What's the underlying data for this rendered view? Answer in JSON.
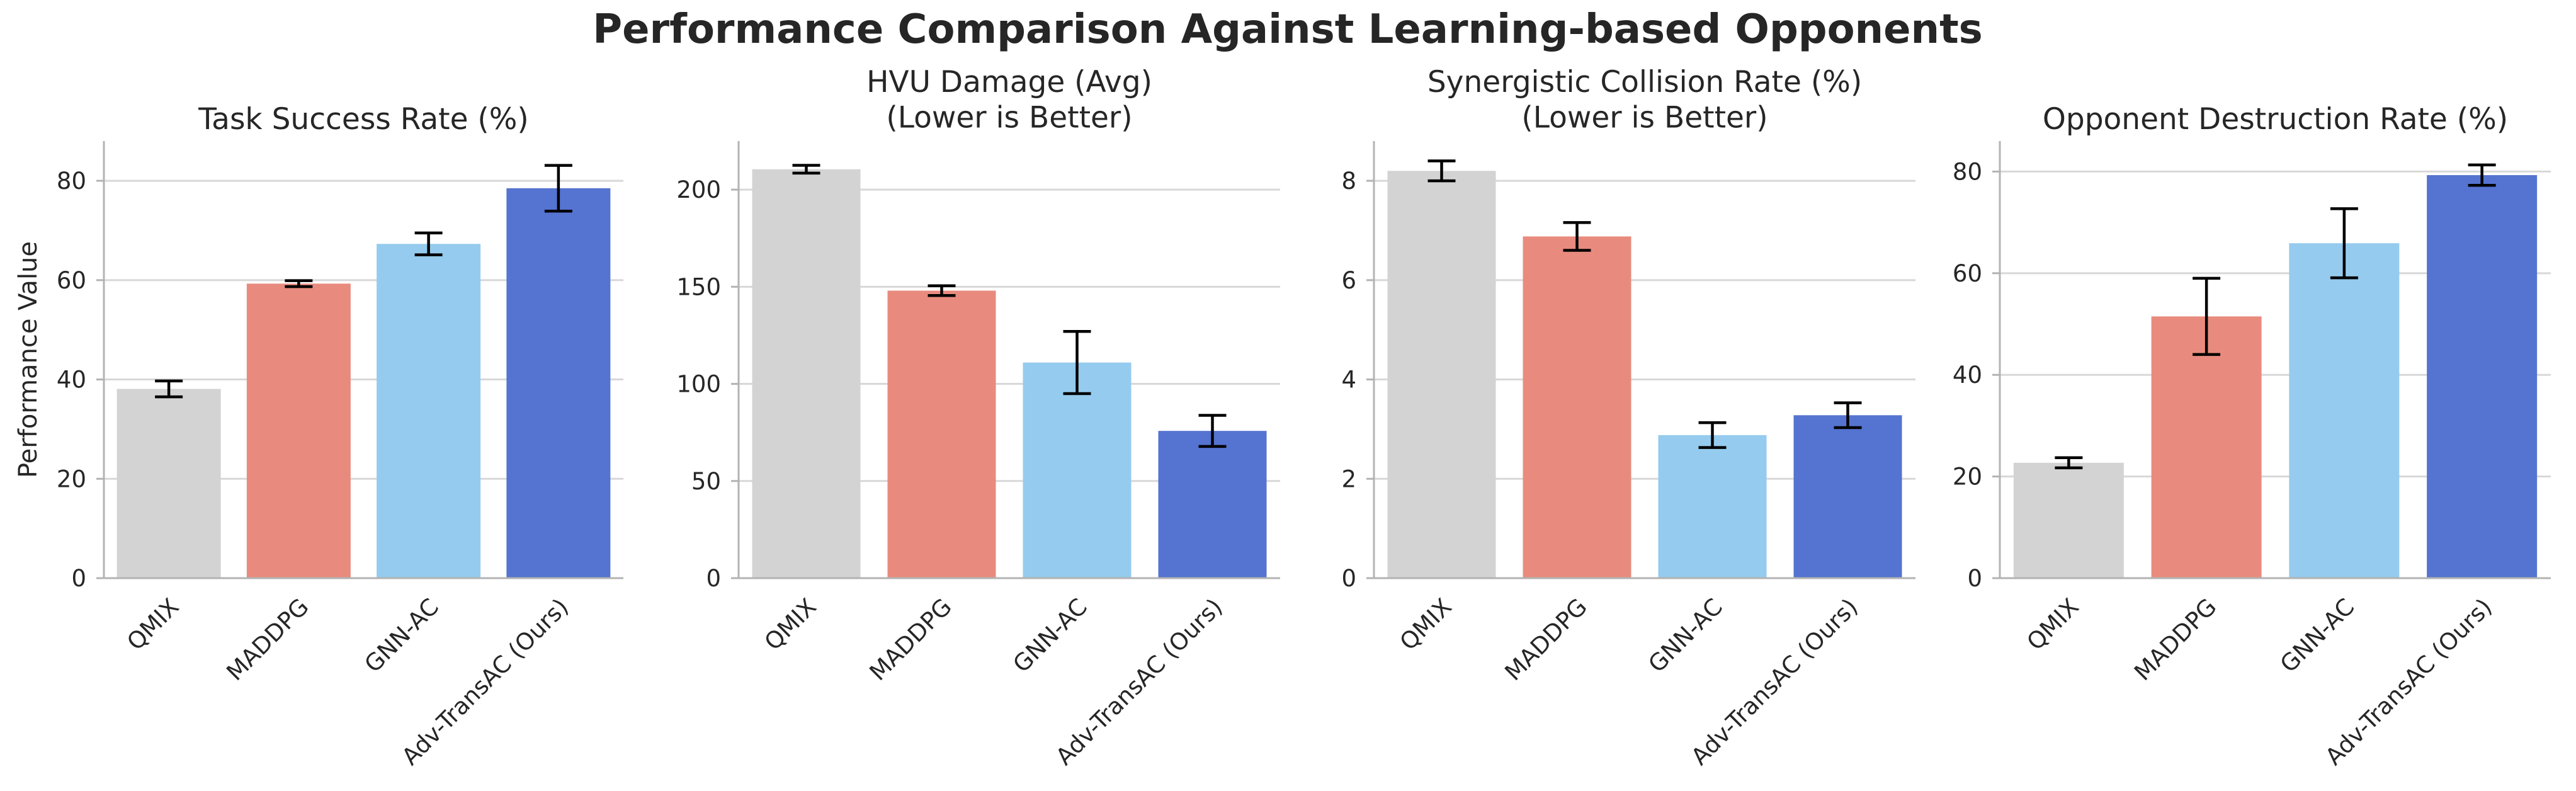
{
  "figure": {
    "suptitle": "Performance Comparison Against Learning-based Opponents"
  },
  "colors": {
    "QMIX": "#d3d3d3",
    "MADDPG": "#e88b7e",
    "GNN-AC": "#95cbee",
    "Adv-TransAC (Ours)": "#5573d0"
  },
  "chart_data": [
    {
      "type": "bar",
      "title": "Task Success Rate (%)",
      "ylabel": "Performance Value",
      "categories": [
        "QMIX",
        "MADDPG",
        "GNN-AC",
        "Adv-TransAC (Ours)"
      ],
      "values": [
        38.1,
        59.3,
        67.3,
        78.5
      ],
      "errors": [
        1.6,
        0.6,
        2.2,
        4.6
      ],
      "ylim": [
        0,
        88
      ],
      "yticks": [
        0,
        20,
        40,
        60,
        80
      ],
      "grid": true
    },
    {
      "type": "bar",
      "title": "HVU Damage (Avg)\n(Lower is Better)",
      "ylabel": "",
      "categories": [
        "QMIX",
        "MADDPG",
        "GNN-AC",
        "Adv-TransAC (Ours)"
      ],
      "values": [
        210.5,
        148.0,
        111.0,
        75.8
      ],
      "errors": [
        2.0,
        2.5,
        16.0,
        8.0
      ],
      "ylim": [
        0,
        225
      ],
      "yticks": [
        0,
        50,
        100,
        150,
        200
      ],
      "grid": true
    },
    {
      "type": "bar",
      "title": "Synergistic Collision Rate (%)\n(Lower is Better)",
      "ylabel": "",
      "categories": [
        "QMIX",
        "MADDPG",
        "GNN-AC",
        "Adv-TransAC (Ours)"
      ],
      "values": [
        8.2,
        6.88,
        2.88,
        3.28
      ],
      "errors": [
        0.2,
        0.28,
        0.25,
        0.25
      ],
      "ylim": [
        0,
        8.8
      ],
      "yticks": [
        0,
        2,
        4,
        6,
        8
      ],
      "grid": true
    },
    {
      "type": "bar",
      "title": "Opponent Destruction Rate (%)",
      "ylabel": "",
      "categories": [
        "QMIX",
        "MADDPG",
        "GNN-AC",
        "Adv-TransAC (Ours)"
      ],
      "values": [
        22.7,
        51.5,
        65.9,
        79.3
      ],
      "errors": [
        1.0,
        7.5,
        6.8,
        2.0
      ],
      "ylim": [
        0,
        86
      ],
      "yticks": [
        0,
        20,
        40,
        60,
        80
      ],
      "grid": true
    }
  ]
}
